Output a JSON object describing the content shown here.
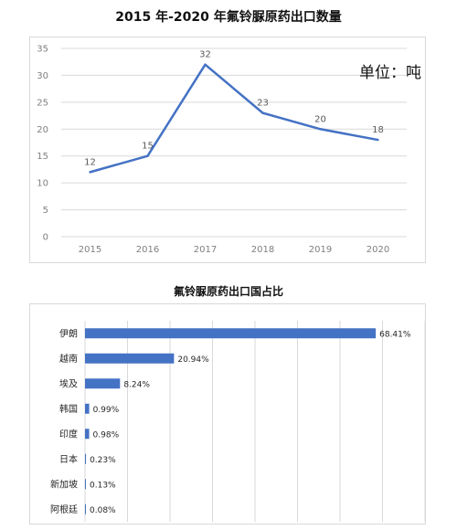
{
  "chart_data": [
    {
      "type": "line",
      "title": "2015 年-2020 年氟铃脲原药出口数量",
      "annotation": "单位：吨",
      "x": [
        "2015",
        "2016",
        "2017",
        "2018",
        "2019",
        "2020"
      ],
      "series": [
        {
          "values": [
            12,
            15,
            32,
            23,
            20,
            18
          ]
        }
      ],
      "ylim": [
        0,
        35
      ],
      "yticks": [
        0,
        5,
        10,
        15,
        20,
        25,
        30,
        35
      ],
      "grid": true,
      "color": "#4472c4"
    },
    {
      "type": "bar",
      "orientation": "horizontal",
      "title": "氟铃脲原药出口国占比",
      "categories": [
        "伊朗",
        "越南",
        "埃及",
        "韩国",
        "印度",
        "日本",
        "新加坡",
        "阿根廷"
      ],
      "values": [
        68.41,
        20.94,
        8.24,
        0.99,
        0.98,
        0.23,
        0.13,
        0.08
      ],
      "value_labels": [
        "68.41%",
        "20.94%",
        "8.24%",
        "0.99%",
        "0.98%",
        "0.23%",
        "0.13%",
        "0.08%"
      ],
      "xlim": [
        0,
        80
      ],
      "grid": true,
      "color": "#4472c4"
    }
  ]
}
